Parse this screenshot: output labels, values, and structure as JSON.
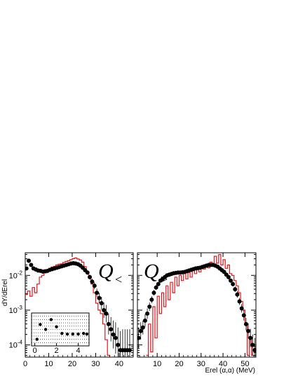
{
  "chart_data": [
    {
      "type": "scatter",
      "panel_label": "Q",
      "panel_subscript": "<",
      "ylabel": "dY/dErel",
      "xlabel": "",
      "xlim": [
        0,
        46
      ],
      "ylim_log10": [
        -4.35,
        -1.35
      ],
      "x_ticks": [
        "0",
        "10",
        "20",
        "30",
        "40"
      ],
      "x_tick_values": [
        0,
        10,
        20,
        30,
        40
      ],
      "y_tick_values": [
        -4,
        -3,
        -2
      ],
      "y_ticks": [
        {
          "base": "10",
          "exp": "-4"
        },
        {
          "base": "10",
          "exp": "-3"
        },
        {
          "base": "10",
          "exp": "-2"
        }
      ],
      "series": [
        {
          "style": "line",
          "color": "#e8161b",
          "x": [
            0.5,
            1.5,
            2.5,
            3.5,
            4.5,
            5.5,
            6.5,
            7.5,
            8.5,
            9.5,
            10.5,
            11.5,
            12.5,
            13.5,
            14.5,
            15.5,
            16.5,
            17.5,
            18.5,
            19.5,
            20.5,
            21.5,
            22.5,
            23.5,
            24.5,
            25.5,
            26.5,
            27.5,
            28.5,
            29.5,
            30.5,
            31.5,
            32.5,
            33.5,
            34.5,
            35.5,
            36.5
          ],
          "y": [
            -2.55,
            -2.45,
            -2.6,
            -2.35,
            -2.5,
            -2.25,
            -2.05,
            -2.0,
            -1.93,
            -1.86,
            -1.8,
            -1.76,
            -1.74,
            -1.7,
            -1.68,
            -1.67,
            -1.63,
            -1.6,
            -1.58,
            -1.55,
            -1.52,
            -1.5,
            -1.53,
            -1.56,
            -1.62,
            -1.75,
            -1.9,
            -2.05,
            -2.25,
            -2.5,
            -2.8,
            -3.0,
            -3.1,
            -3.4,
            -3.85,
            -4.3,
            -4.35
          ]
        },
        {
          "style": "points",
          "color": "#000000",
          "x": [
            0.5,
            1.5,
            2.5,
            3.5,
            4.5,
            5.5,
            6.5,
            7.5,
            8.5,
            9.5,
            10.5,
            11.5,
            12.5,
            13.5,
            14.5,
            15.5,
            16.5,
            17.5,
            18.5,
            19.5,
            20.5,
            21.5,
            22.5,
            23.5,
            24.5,
            25.5,
            26.5,
            27.5,
            28.5,
            29.5,
            30.5,
            31.5,
            32.5,
            33.5,
            34.5,
            35.5,
            36.5,
            37.5,
            38.5,
            39.5,
            40.5,
            41.5,
            42.5,
            43.5,
            44.5
          ],
          "y": [
            -1.8,
            -1.58,
            -1.7,
            -1.8,
            -1.83,
            -1.86,
            -1.87,
            -1.89,
            -1.88,
            -1.87,
            -1.84,
            -1.82,
            -1.8,
            -1.78,
            -1.76,
            -1.74,
            -1.72,
            -1.7,
            -1.68,
            -1.66,
            -1.65,
            -1.66,
            -1.68,
            -1.72,
            -1.78,
            -1.85,
            -1.92,
            -2.05,
            -2.18,
            -2.3,
            -2.5,
            -2.65,
            -2.8,
            -3.0,
            -3.1,
            -3.4,
            -3.55,
            -3.7,
            -3.8,
            -4.0,
            -4.15,
            -4.15,
            -4.15,
            -4.15,
            -4.15
          ],
          "err": [
            0.05,
            0.06,
            0.05,
            0.04,
            0.04,
            0.03,
            0.03,
            0.03,
            0.03,
            0.03,
            0.03,
            0.03,
            0.03,
            0.03,
            0.03,
            0.03,
            0.03,
            0.03,
            0.03,
            0.03,
            0.03,
            0.03,
            0.03,
            0.04,
            0.04,
            0.05,
            0.06,
            0.07,
            0.08,
            0.1,
            0.12,
            0.15,
            0.18,
            0.22,
            0.25,
            0.3,
            0.35,
            0.4,
            0.45,
            0.5,
            0.55,
            0.6,
            0.6,
            0.6,
            0.6
          ]
        }
      ],
      "inset": {
        "x_ticks": [
          "0",
          "2",
          "4"
        ],
        "x_tick_values": [
          0,
          2,
          4
        ],
        "xlim": [
          -0.3,
          5.0
        ],
        "ylim": [
          0,
          10
        ],
        "grid": true,
        "x": [
          0.2,
          0.5,
          1.0,
          1.5,
          2.0,
          2.5,
          3.0,
          3.5,
          4.0,
          4.5,
          4.8
        ],
        "y": [
          2.0,
          6.5,
          5.0,
          8.0,
          5.8,
          3.8,
          3.6,
          3.6,
          3.6,
          3.8,
          3.6
        ]
      }
    },
    {
      "type": "scatter",
      "panel_label": "Q",
      "panel_subscript": ">",
      "xlabel": "Erel (α,α) (MeV)",
      "ylabel": "",
      "xlim": [
        1,
        55
      ],
      "ylim_log10": [
        -4.35,
        -1.35
      ],
      "x_ticks": [
        "10",
        "20",
        "30",
        "40",
        "50"
      ],
      "x_tick_values": [
        10,
        20,
        30,
        40,
        50
      ],
      "y_tick_values": [
        -4,
        -3,
        -2
      ],
      "series": [
        {
          "style": "line",
          "color": "#e8161b",
          "x": [
            5.5,
            6.5,
            7.5,
            8.5,
            9.5,
            10.5,
            11.5,
            12.5,
            13.5,
            14.5,
            15.5,
            16.5,
            17.5,
            18.5,
            19.5,
            20.5,
            21.5,
            22.5,
            23.5,
            24.5,
            25.5,
            26.5,
            27.5,
            28.5,
            29.5,
            30.5,
            31.5,
            32.5,
            33.5,
            34.5,
            35.5,
            36.5,
            37.5,
            38.5,
            39.5,
            40.5,
            41.5,
            42.5,
            43.5,
            44.5,
            45.5,
            46.5,
            47.5,
            48.5,
            49.5,
            50.5,
            51.5,
            52.5,
            53.5
          ],
          "y": [
            -4.3,
            -3.4,
            -4.2,
            -2.9,
            -3.8,
            -2.6,
            -3.1,
            -2.5,
            -2.9,
            -2.3,
            -2.7,
            -2.2,
            -2.5,
            -2.05,
            -2.3,
            -2.0,
            -2.15,
            -1.95,
            -2.1,
            -1.92,
            -2.05,
            -1.85,
            -1.95,
            -1.8,
            -1.9,
            -1.75,
            -1.82,
            -1.68,
            -1.78,
            -1.62,
            -1.7,
            -1.45,
            -1.65,
            -1.4,
            -1.7,
            -1.55,
            -1.8,
            -1.7,
            -1.95,
            -2.0,
            -2.15,
            -2.3,
            -2.5,
            -2.75,
            -3.0,
            -3.4,
            -4.3,
            -3.8,
            -4.3
          ]
        },
        {
          "style": "points",
          "color": "#000000",
          "x": [
            1.5,
            2.5,
            3.5,
            4.5,
            5.5,
            6.5,
            7.5,
            8.5,
            9.5,
            10.5,
            11.5,
            12.5,
            13.5,
            14.5,
            15.5,
            16.5,
            17.5,
            18.5,
            19.5,
            20.5,
            21.5,
            22.5,
            23.5,
            24.5,
            25.5,
            26.5,
            27.5,
            28.5,
            29.5,
            30.5,
            31.5,
            32.5,
            33.5,
            34.5,
            35.5,
            36.5,
            37.5,
            38.5,
            39.5,
            40.5,
            41.5,
            42.5,
            43.5,
            44.5,
            45.5,
            46.5,
            47.5,
            48.5,
            49.5,
            50.5,
            51.5,
            52.5,
            53.5,
            54.5
          ],
          "y": [
            -3.8,
            -3.6,
            -3.5,
            -3.3,
            -3.1,
            -2.9,
            -2.7,
            -2.5,
            -2.35,
            -2.25,
            -2.15,
            -2.1,
            -2.05,
            -2.0,
            -1.98,
            -1.96,
            -1.94,
            -1.93,
            -1.92,
            -1.92,
            -1.91,
            -1.9,
            -1.88,
            -1.86,
            -1.84,
            -1.82,
            -1.8,
            -1.79,
            -1.78,
            -1.76,
            -1.74,
            -1.72,
            -1.7,
            -1.7,
            -1.7,
            -1.72,
            -1.75,
            -1.8,
            -1.85,
            -1.9,
            -1.98,
            -2.05,
            -2.15,
            -2.25,
            -2.4,
            -2.55,
            -2.75,
            -2.95,
            -3.15,
            -3.4,
            -3.6,
            -3.8,
            -4.0,
            -4.15
          ],
          "err": [
            0.3,
            0.25,
            0.2,
            0.18,
            0.15,
            0.12,
            0.1,
            0.08,
            0.07,
            0.06,
            0.05,
            0.05,
            0.05,
            0.04,
            0.04,
            0.04,
            0.04,
            0.04,
            0.04,
            0.04,
            0.04,
            0.04,
            0.04,
            0.04,
            0.04,
            0.04,
            0.04,
            0.04,
            0.04,
            0.04,
            0.04,
            0.04,
            0.04,
            0.04,
            0.04,
            0.04,
            0.04,
            0.04,
            0.05,
            0.05,
            0.05,
            0.06,
            0.06,
            0.07,
            0.08,
            0.09,
            0.1,
            0.12,
            0.15,
            0.18,
            0.22,
            0.26,
            0.3,
            0.35
          ]
        }
      ]
    }
  ]
}
